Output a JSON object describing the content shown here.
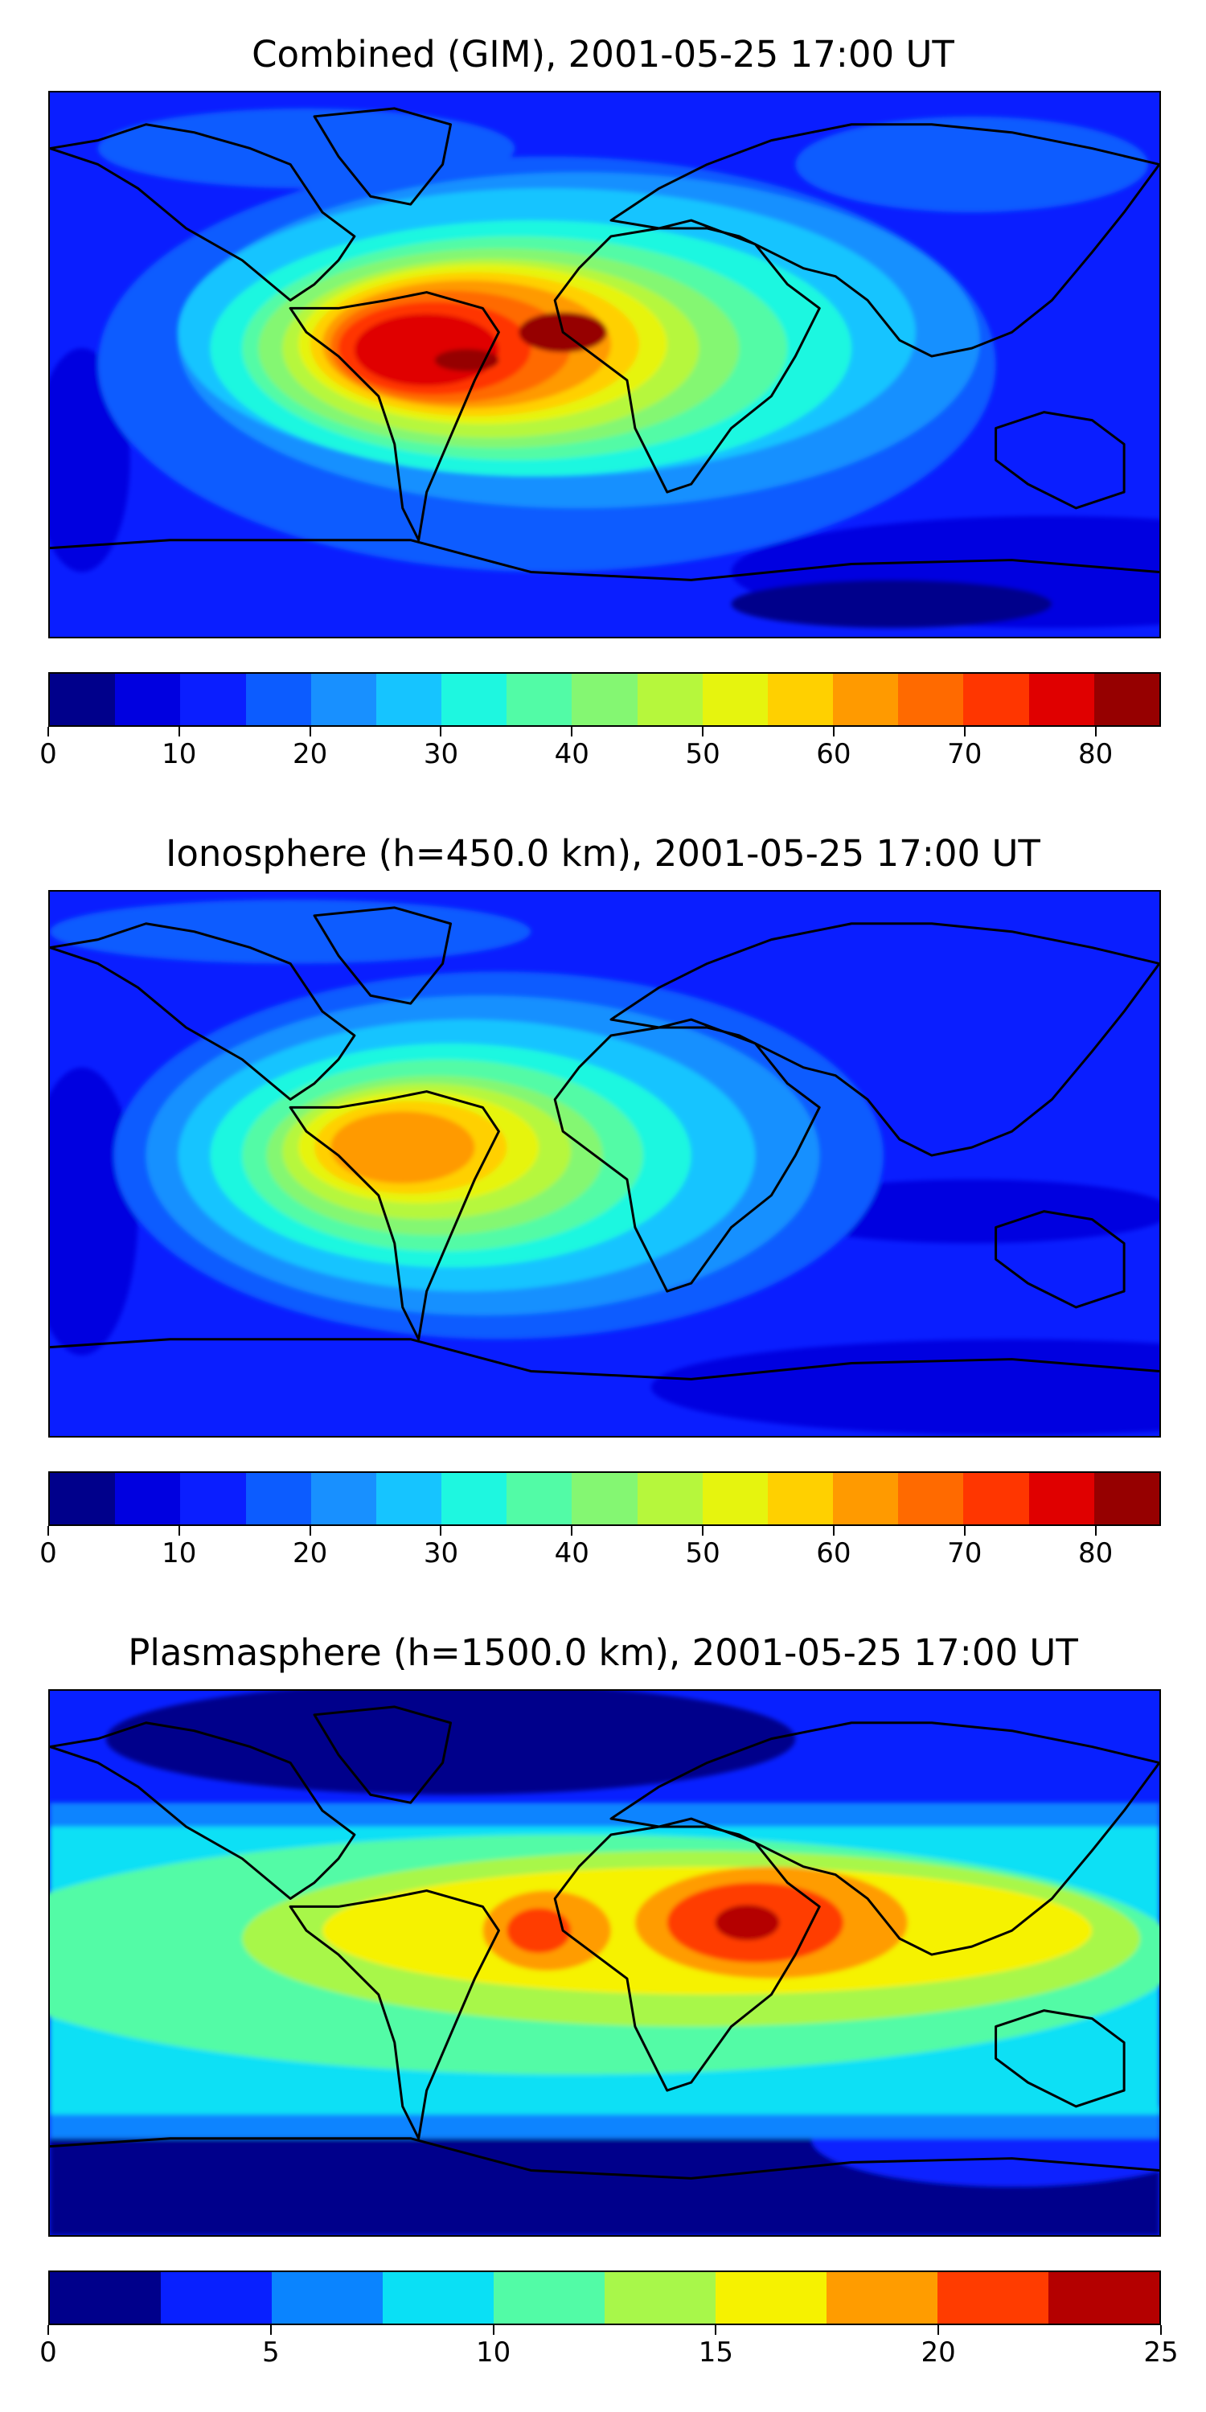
{
  "panels": [
    {
      "title": "Combined (GIM), 2001-05-25 17:00 UT",
      "colorbar": {
        "min": 0,
        "max": 85,
        "colors": [
          "#00008b",
          "#0000e0",
          "#0a1eff",
          "#0c5cff",
          "#1890ff",
          "#16c4ff",
          "#1ef7e0",
          "#52fba6",
          "#84f772",
          "#b6f73c",
          "#e6f40e",
          "#ffd000",
          "#ff9a00",
          "#ff6a00",
          "#ff3600",
          "#e00000",
          "#960000"
        ],
        "tick_labels": [
          "0",
          "10",
          "20",
          "30",
          "40",
          "50",
          "60",
          "70",
          "80"
        ],
        "tick_values": [
          0,
          10,
          20,
          30,
          40,
          50,
          60,
          70,
          80
        ]
      }
    },
    {
      "title": "Ionosphere  (h=450.0 km), 2001-05-25 17:00 UT",
      "colorbar": {
        "min": 0,
        "max": 85,
        "colors": [
          "#00008b",
          "#0000e0",
          "#0a1eff",
          "#0c5cff",
          "#1890ff",
          "#16c4ff",
          "#1ef7e0",
          "#52fba6",
          "#84f772",
          "#b6f73c",
          "#e6f40e",
          "#ffd000",
          "#ff9a00",
          "#ff6a00",
          "#ff3600",
          "#e00000",
          "#960000"
        ],
        "tick_labels": [
          "0",
          "10",
          "20",
          "30",
          "40",
          "50",
          "60",
          "70",
          "80"
        ],
        "tick_values": [
          0,
          10,
          20,
          30,
          40,
          50,
          60,
          70,
          80
        ]
      }
    },
    {
      "title": "Plasmasphere (h=1500.0 km), 2001-05-25 17:00 UT",
      "colorbar": {
        "min": 0,
        "max": 25,
        "colors": [
          "#00008b",
          "#0820ff",
          "#0a84ff",
          "#0ae0f5",
          "#52fba6",
          "#a8f74a",
          "#f6f200",
          "#ff9c00",
          "#ff3c00",
          "#b40000"
        ],
        "tick_labels": [
          "0",
          "5",
          "10",
          "15",
          "20",
          "25"
        ],
        "tick_values": [
          0,
          5,
          10,
          15,
          20,
          25
        ]
      }
    }
  ]
}
